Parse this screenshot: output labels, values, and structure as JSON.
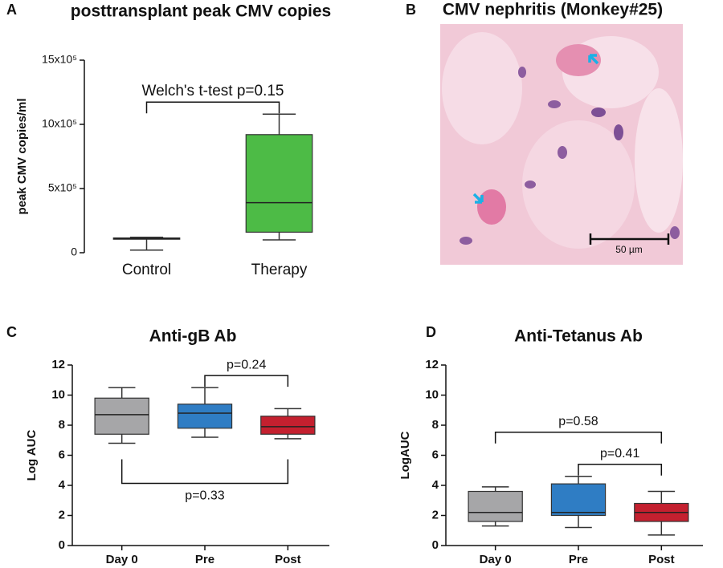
{
  "chart_data": [
    {
      "type": "box",
      "panel": "A",
      "title": "posttransplant peak CMV copies",
      "ylabel": "peak CMV copies/ml",
      "ylim": [
        0,
        1500000
      ],
      "yticks": [
        0,
        {
          "value": 500000,
          "label": "5x10⁵"
        },
        {
          "value": 1000000,
          "label": "10x10⁵"
        },
        {
          "value": 1500000,
          "label": "15x10⁵"
        }
      ],
      "boxes": [
        {
          "name": "Control",
          "color": "#b3b3b3",
          "min": 20000,
          "q1": 105000,
          "median": 110000,
          "q3": 115000,
          "max": 120000
        },
        {
          "name": "Therapy",
          "color": "#4dbb46",
          "min": 100000,
          "q1": 160000,
          "median": 390000,
          "q3": 920000,
          "max": 1080000
        }
      ],
      "comparisons": [
        {
          "between": [
            "Control",
            "Therapy"
          ],
          "side": "above",
          "label": "Welch's t-test p=0.15"
        }
      ]
    },
    {
      "type": "image",
      "panel": "B",
      "title": "CMV nephritis (Monkey#25)",
      "scale_bar": "50 µm"
    },
    {
      "type": "box",
      "panel": "C",
      "title": "Anti-gB Ab",
      "ylabel": "Log AUC",
      "ylim": [
        0,
        12
      ],
      "yticks": [
        0,
        2,
        4,
        6,
        8,
        10,
        12
      ],
      "boxes": [
        {
          "name": "Day 0",
          "color": "#a6a6a8",
          "min": 6.8,
          "q1": 7.4,
          "median": 8.7,
          "q3": 9.8,
          "max": 10.5
        },
        {
          "name": "Pre",
          "color": "#2f7dc4",
          "min": 7.2,
          "q1": 7.8,
          "median": 8.8,
          "q3": 9.4,
          "max": 10.5
        },
        {
          "name": "Post",
          "color": "#c4202f",
          "min": 7.1,
          "q1": 7.4,
          "median": 7.9,
          "q3": 8.6,
          "max": 9.1
        }
      ],
      "comparisons": [
        {
          "between": [
            "Pre",
            "Post"
          ],
          "side": "above",
          "label": "p=0.24"
        },
        {
          "between": [
            "Day 0",
            "Post"
          ],
          "side": "below",
          "label": "p=0.33"
        }
      ]
    },
    {
      "type": "box",
      "panel": "D",
      "title": "Anti-Tetanus Ab",
      "ylabel": "LogAUC",
      "ylim": [
        0,
        12
      ],
      "yticks": [
        0,
        2,
        4,
        6,
        8,
        10,
        12
      ],
      "boxes": [
        {
          "name": "Day 0",
          "color": "#a6a6a8",
          "min": 1.3,
          "q1": 1.6,
          "median": 2.2,
          "q3": 3.6,
          "max": 3.9
        },
        {
          "name": "Pre",
          "color": "#2f7dc4",
          "min": 1.2,
          "q1": 2.0,
          "median": 2.2,
          "q3": 4.1,
          "max": 4.6
        },
        {
          "name": "Post",
          "color": "#c4202f",
          "min": 0.7,
          "q1": 1.6,
          "median": 2.2,
          "q3": 2.8,
          "max": 3.6
        }
      ],
      "comparisons": [
        {
          "between": [
            "Pre",
            "Post"
          ],
          "side": "above",
          "label": "p=0.41"
        },
        {
          "between": [
            "Day 0",
            "Post"
          ],
          "side": "above",
          "label": "p=0.58"
        }
      ]
    }
  ]
}
